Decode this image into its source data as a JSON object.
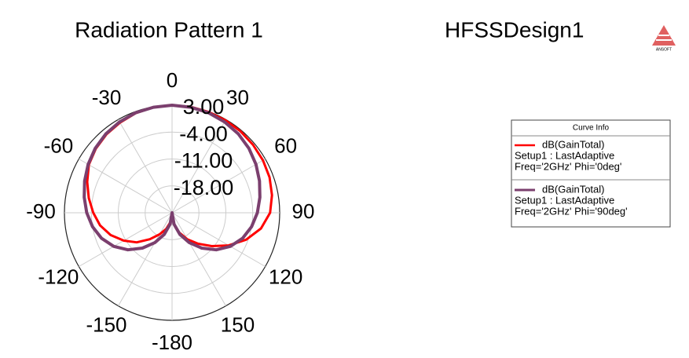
{
  "chart_data": {
    "type": "polar",
    "title": "Radiation Pattern 1",
    "design_name": "HFSSDesign1",
    "logo_text": "ANSOFT",
    "legend_title": "Curve Info",
    "theta": [
      -180,
      -170,
      -160,
      -150,
      -140,
      -130,
      -120,
      -110,
      -100,
      -90,
      -80,
      -70,
      -60,
      -50,
      -40,
      -30,
      -20,
      -10,
      0,
      10,
      20,
      30,
      40,
      50,
      60,
      70,
      80,
      90,
      100,
      110,
      120,
      130,
      140,
      150,
      160,
      170
    ],
    "thetaticks": [
      -180,
      -150,
      -120,
      -90,
      -60,
      -30,
      0,
      30,
      60,
      90,
      120,
      150
    ],
    "rlim": [
      -25,
      3
    ],
    "rticks": [
      {
        "value": 3,
        "label": "3.00"
      },
      {
        "value": -4,
        "label": "-4.00"
      },
      {
        "value": -11,
        "label": "-11.00"
      },
      {
        "value": -18,
        "label": "-18.00"
      }
    ],
    "grid": true,
    "legend": "right",
    "series": [
      {
        "name": "dB(GainTotal)",
        "setup": "Setup1 : LastAdaptive",
        "condition": "Freq='2GHz' Phi='0deg'",
        "color": "#ff0000",
        "values": [
          -25,
          -22.5,
          -20.5,
          -18.5,
          -16,
          -13,
          -10.5,
          -8,
          -6,
          -4.5,
          -3,
          -1.5,
          0,
          0.9,
          1.6,
          2.1,
          2.6,
          2.9,
          3,
          3,
          2.9,
          2.8,
          2.7,
          2.5,
          2.3,
          2,
          1.4,
          0.5,
          -1.5,
          -4.5,
          -8,
          -11.5,
          -14.5,
          -17,
          -19.5,
          -22
        ]
      },
      {
        "name": "dB(GainTotal)",
        "setup": "Setup1 : LastAdaptive",
        "condition": "Freq='2GHz' Phi='90deg'",
        "color": "#7b3f6e",
        "values": [
          -25,
          -22,
          -19,
          -16,
          -13,
          -10,
          -7.5,
          -5.5,
          -4,
          -2.8,
          -1.8,
          -0.8,
          0.2,
          1.1,
          1.8,
          2.3,
          2.7,
          2.9,
          3,
          2.9,
          2.7,
          2.3,
          1.8,
          1.1,
          0.2,
          -0.8,
          -1.8,
          -2.8,
          -4,
          -5.5,
          -7.5,
          -10,
          -13,
          -16,
          -19,
          -22
        ]
      }
    ]
  }
}
